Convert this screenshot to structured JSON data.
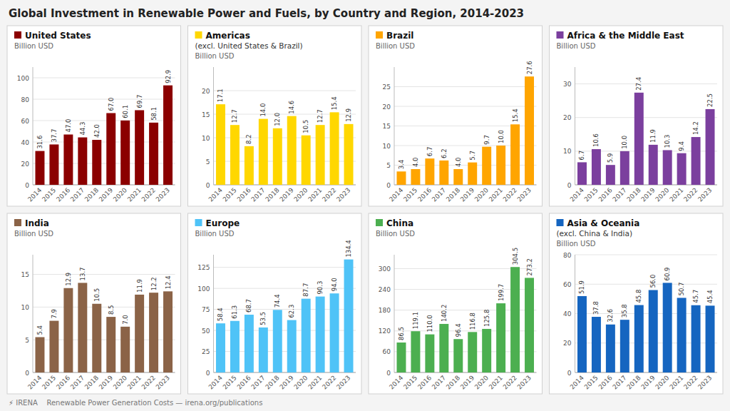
{
  "title": "Global Investment in Renewable Power and Fuels, by Country and Region, 2014-2023",
  "annotations": [
    "⚡ IRENA    Renewable Power Generation Costs — irena.org/publications"
  ],
  "chart_data": [
    {
      "type": "bar",
      "title": "United States",
      "subtitle": "Billion USD",
      "categories": [
        "2014",
        "2015",
        "2016",
        "2017",
        "2018",
        "2019",
        "2020",
        "2021",
        "2022",
        "2023"
      ],
      "values": [
        31.6,
        37.7,
        47.0,
        44.3,
        42.0,
        67.0,
        60.1,
        69.7,
        58.1,
        92.9
      ],
      "value_labels": [
        "31.6",
        "37.7",
        "47.0",
        "44.3",
        "42.0",
        "67.0",
        "60.1",
        "69.7",
        "58.1",
        "92.9"
      ],
      "color": "#8B0000",
      "ylim": [
        0,
        110
      ],
      "yticks": [
        0,
        20,
        40,
        60,
        80,
        100
      ],
      "grid": true,
      "data_labels": true
    },
    {
      "type": "bar",
      "title": "Americas",
      "annotations": [
        "(excl. United States & Brazil)"
      ],
      "subtitle": "Billion USD",
      "categories": [
        "2014",
        "2015",
        "2016",
        "2017",
        "2018",
        "2019",
        "2020",
        "2021",
        "2022",
        "2023"
      ],
      "values": [
        17.1,
        12.7,
        8.2,
        14.0,
        12.0,
        14.6,
        10.5,
        12.7,
        15.4,
        12.9
      ],
      "value_labels": [
        "17.1",
        "12.7",
        "8.2",
        "14.0",
        "12.0",
        "14.6",
        "10.5",
        "12.7",
        "15.4",
        "12.9"
      ],
      "color": "#FFD700",
      "ylim": [
        0,
        25
      ],
      "yticks": [
        0,
        5,
        10,
        15,
        20
      ],
      "grid": true,
      "data_labels": true
    },
    {
      "type": "bar",
      "title": "Brazil",
      "subtitle": "Billion USD",
      "categories": [
        "2014",
        "2015",
        "2016",
        "2017",
        "2018",
        "2019",
        "2020",
        "2021",
        "2022",
        "2023"
      ],
      "values": [
        3.4,
        4.0,
        6.7,
        6.2,
        4.0,
        5.7,
        9.7,
        10.0,
        15.4,
        27.6
      ],
      "value_labels": [
        "3.4",
        "4.0",
        "6.7",
        "6.2",
        "4.0",
        "5.7",
        "9.7",
        "10.0",
        "15.4",
        "27.6"
      ],
      "color": "#FFA500",
      "ylim": [
        0,
        30
      ],
      "yticks": [
        0,
        5,
        10,
        15,
        20,
        25
      ],
      "grid": true,
      "data_labels": true
    },
    {
      "type": "bar",
      "title": "Africa & the Middle East",
      "subtitle": "Billion USD",
      "categories": [
        "2014",
        "2015",
        "2016",
        "2017",
        "2018",
        "2019",
        "2020",
        "2021",
        "2022",
        "2023"
      ],
      "values": [
        6.7,
        10.6,
        5.9,
        10.0,
        27.4,
        11.9,
        10.3,
        9.4,
        14.2,
        22.5
      ],
      "value_labels": [
        "6.7",
        "10.6",
        "5.9",
        "10.0",
        "27.4",
        "11.9",
        "10.3",
        "9.4",
        "14.2",
        "22.5"
      ],
      "color": "#7B3F9E",
      "ylim": [
        0,
        35
      ],
      "yticks": [
        0,
        10,
        20,
        30
      ],
      "grid": true,
      "data_labels": true
    },
    {
      "type": "bar",
      "title": "India",
      "subtitle": "Billion USD",
      "categories": [
        "2014",
        "2015",
        "2016",
        "2017",
        "2018",
        "2019",
        "2020",
        "2021",
        "2022",
        "2023"
      ],
      "values": [
        5.4,
        7.9,
        12.9,
        13.7,
        10.5,
        8.5,
        7.0,
        11.9,
        12.2,
        12.4
      ],
      "value_labels": [
        "5.4",
        "7.9",
        "12.9",
        "13.7",
        "10.5",
        "8.5",
        "7.0",
        "11.9",
        "12.2",
        "12.4"
      ],
      "color": "#8B6347",
      "ylim": [
        0,
        18
      ],
      "yticks": [
        0,
        5,
        10,
        15
      ],
      "grid": true,
      "data_labels": true
    },
    {
      "type": "bar",
      "title": "Europe",
      "subtitle": "Billion USD",
      "categories": [
        "2014",
        "2015",
        "2016",
        "2017",
        "2018",
        "2019",
        "2020",
        "2021",
        "2022",
        "2023"
      ],
      "values": [
        58.4,
        61.3,
        68.7,
        53.5,
        74.4,
        62.3,
        87.7,
        90.3,
        94.0,
        134.4
      ],
      "value_labels": [
        "58.4",
        "61.3",
        "68.7",
        "53.5",
        "74.4",
        "62.3",
        "87.7",
        "90.3",
        "94.0",
        "134.4"
      ],
      "color": "#4FC3F7",
      "ylim": [
        0,
        140
      ],
      "yticks": [
        0,
        25,
        50,
        75,
        100,
        125
      ],
      "grid": true,
      "data_labels": true
    },
    {
      "type": "bar",
      "title": "China",
      "subtitle": "Billion USD",
      "categories": [
        "2014",
        "2015",
        "2016",
        "2017",
        "2018",
        "2019",
        "2020",
        "2021",
        "2022",
        "2023"
      ],
      "values": [
        86.5,
        119.1,
        110.0,
        140.2,
        96.4,
        116.8,
        125.8,
        199.7,
        304.5,
        273.2
      ],
      "value_labels": [
        "86.5",
        "119.1",
        "110.0",
        "140.2",
        "96.4",
        "116.8",
        "125.8",
        "199.7",
        "304.5",
        "273.2"
      ],
      "color": "#4CAF50",
      "ylim": [
        0,
        340
      ],
      "yticks": [
        0,
        60,
        120,
        180,
        240,
        300
      ],
      "grid": true,
      "data_labels": true
    },
    {
      "type": "bar",
      "title": "Asia & Oceania",
      "annotations": [
        "(excl. China & India)"
      ],
      "subtitle": "Billion USD",
      "categories": [
        "2014",
        "2015",
        "2016",
        "2017",
        "2018",
        "2019",
        "2020",
        "2021",
        "2022",
        "2023"
      ],
      "values": [
        51.9,
        37.8,
        32.6,
        35.8,
        45.8,
        56.0,
        60.9,
        50.7,
        45.7,
        45.4
      ],
      "value_labels": [
        "51.9",
        "37.8",
        "32.6",
        "35.8",
        "45.8",
        "56.0",
        "60.9",
        "50.7",
        "45.7",
        "45.4"
      ],
      "color": "#1565C0",
      "ylim": [
        0,
        80
      ],
      "yticks": [
        0,
        20,
        40,
        60,
        80
      ],
      "grid": true,
      "data_labels": true
    }
  ]
}
